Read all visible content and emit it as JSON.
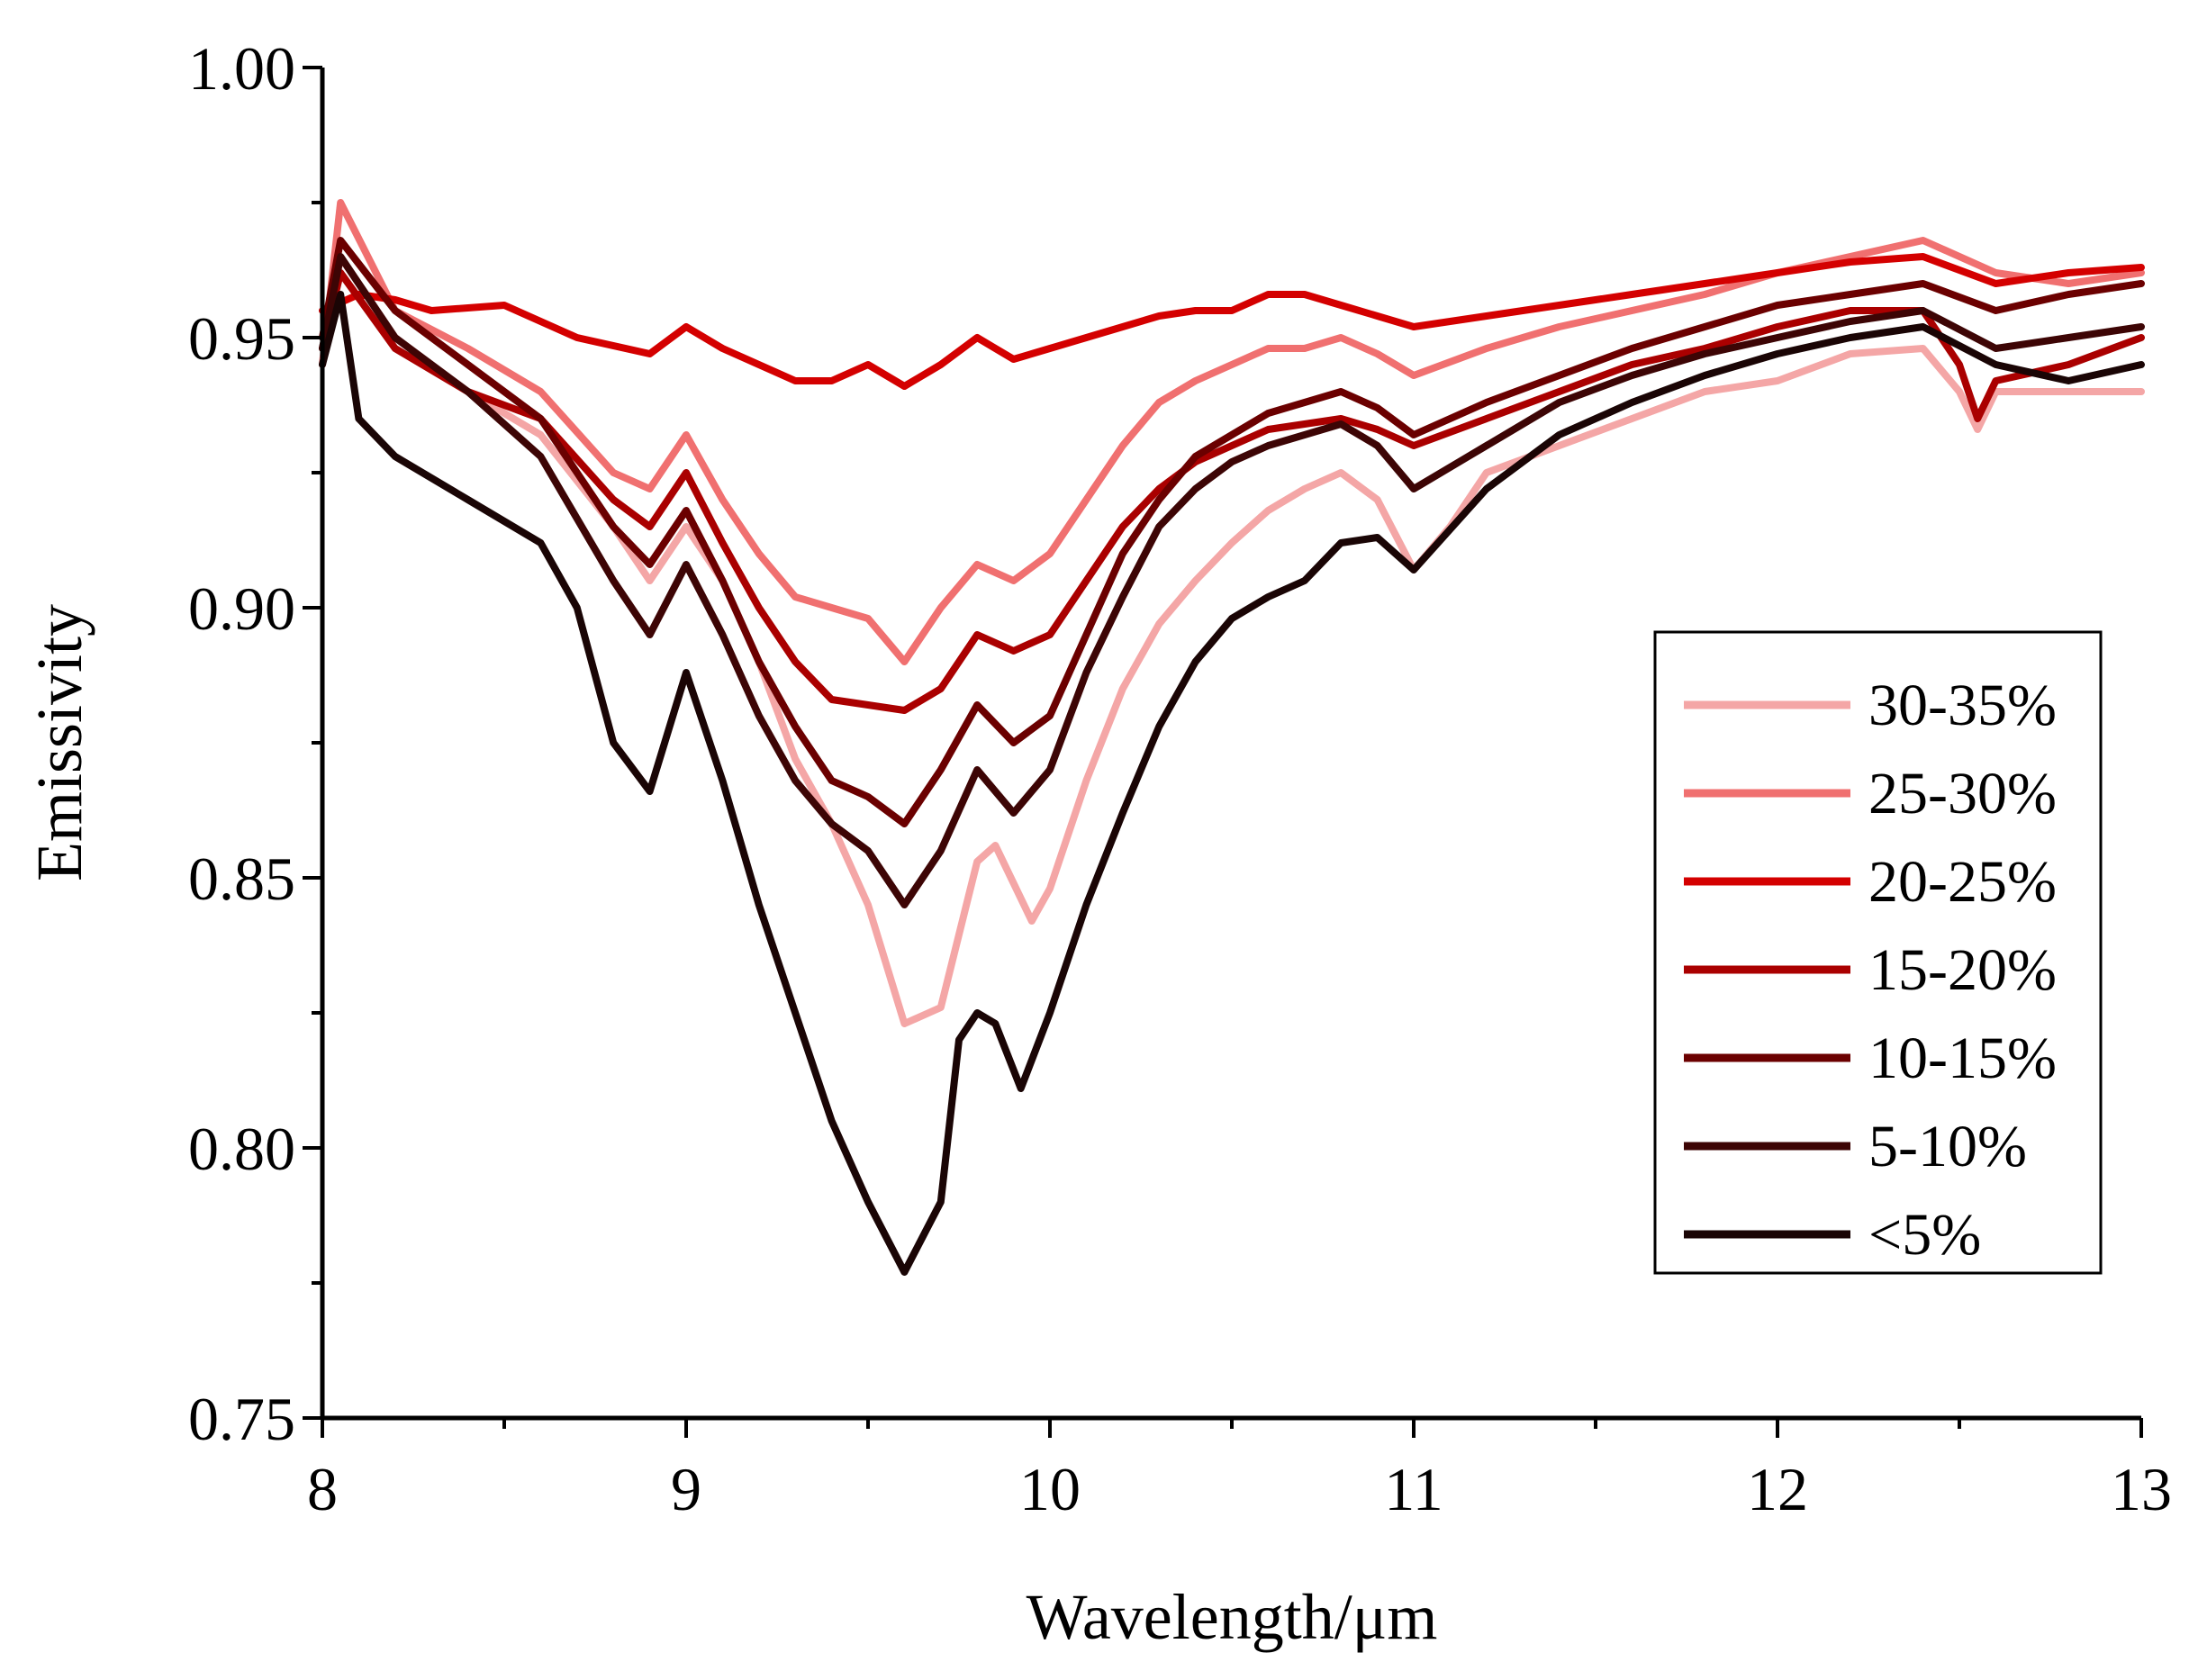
{
  "chart_data": {
    "type": "line",
    "title": "",
    "xlabel": "Wavelength/μm",
    "ylabel": "Emissivity",
    "xlim": [
      8,
      13
    ],
    "ylim": [
      0.75,
      1.0
    ],
    "xticks": [
      8,
      9,
      10,
      11,
      12,
      13
    ],
    "xtick_labels": [
      "8",
      "9",
      "10",
      "11",
      "12",
      "13"
    ],
    "yticks": [
      0.75,
      0.8,
      0.85,
      0.9,
      0.95,
      1.0
    ],
    "ytick_labels": [
      "0.75",
      "0.80",
      "0.85",
      "0.90",
      "0.95",
      "1.00"
    ],
    "grid": false,
    "legend_position": "right",
    "series": [
      {
        "name": "30-35%",
        "color": "#f4a6a6",
        "points": [
          [
            8,
            0.945
          ],
          [
            8.05,
            0.965
          ],
          [
            8.2,
            0.95
          ],
          [
            8.4,
            0.94
          ],
          [
            8.6,
            0.932
          ],
          [
            8.8,
            0.915
          ],
          [
            8.9,
            0.905
          ],
          [
            9.0,
            0.915
          ],
          [
            9.1,
            0.905
          ],
          [
            9.2,
            0.89
          ],
          [
            9.3,
            0.872
          ],
          [
            9.4,
            0.86
          ],
          [
            9.5,
            0.845
          ],
          [
            9.6,
            0.823
          ],
          [
            9.7,
            0.826
          ],
          [
            9.8,
            0.853
          ],
          [
            9.85,
            0.856
          ],
          [
            9.95,
            0.842
          ],
          [
            10.0,
            0.848
          ],
          [
            10.1,
            0.868
          ],
          [
            10.2,
            0.885
          ],
          [
            10.3,
            0.897
          ],
          [
            10.4,
            0.905
          ],
          [
            10.5,
            0.912
          ],
          [
            10.6,
            0.918
          ],
          [
            10.7,
            0.922
          ],
          [
            10.8,
            0.925
          ],
          [
            10.9,
            0.92
          ],
          [
            11.0,
            0.907
          ],
          [
            11.1,
            0.915
          ],
          [
            11.2,
            0.925
          ],
          [
            11.4,
            0.93
          ],
          [
            11.6,
            0.935
          ],
          [
            11.8,
            0.94
          ],
          [
            12.0,
            0.942
          ],
          [
            12.2,
            0.947
          ],
          [
            12.4,
            0.948
          ],
          [
            12.5,
            0.94
          ],
          [
            12.55,
            0.933
          ],
          [
            12.6,
            0.94
          ],
          [
            12.8,
            0.94
          ],
          [
            13.0,
            0.94
          ]
        ]
      },
      {
        "name": "25-30%",
        "color": "#f07070",
        "points": [
          [
            8,
            0.945
          ],
          [
            8.05,
            0.975
          ],
          [
            8.2,
            0.955
          ],
          [
            8.4,
            0.948
          ],
          [
            8.6,
            0.94
          ],
          [
            8.8,
            0.925
          ],
          [
            8.9,
            0.922
          ],
          [
            9.0,
            0.932
          ],
          [
            9.1,
            0.92
          ],
          [
            9.2,
            0.91
          ],
          [
            9.3,
            0.902
          ],
          [
            9.4,
            0.9
          ],
          [
            9.5,
            0.898
          ],
          [
            9.6,
            0.89
          ],
          [
            9.7,
            0.9
          ],
          [
            9.8,
            0.908
          ],
          [
            9.9,
            0.905
          ],
          [
            10.0,
            0.91
          ],
          [
            10.1,
            0.92
          ],
          [
            10.2,
            0.93
          ],
          [
            10.3,
            0.938
          ],
          [
            10.4,
            0.942
          ],
          [
            10.5,
            0.945
          ],
          [
            10.6,
            0.948
          ],
          [
            10.7,
            0.948
          ],
          [
            10.8,
            0.95
          ],
          [
            10.9,
            0.947
          ],
          [
            11.0,
            0.943
          ],
          [
            11.2,
            0.948
          ],
          [
            11.4,
            0.952
          ],
          [
            11.6,
            0.955
          ],
          [
            11.8,
            0.958
          ],
          [
            12.0,
            0.962
          ],
          [
            12.2,
            0.965
          ],
          [
            12.4,
            0.968
          ],
          [
            12.6,
            0.962
          ],
          [
            12.8,
            0.96
          ],
          [
            13.0,
            0.962
          ]
        ]
      },
      {
        "name": "20-25%",
        "color": "#d40000",
        "points": [
          [
            8,
            0.955
          ],
          [
            8.1,
            0.958
          ],
          [
            8.2,
            0.957
          ],
          [
            8.3,
            0.955
          ],
          [
            8.5,
            0.956
          ],
          [
            8.7,
            0.95
          ],
          [
            8.9,
            0.947
          ],
          [
            9.0,
            0.952
          ],
          [
            9.1,
            0.948
          ],
          [
            9.2,
            0.945
          ],
          [
            9.3,
            0.942
          ],
          [
            9.4,
            0.942
          ],
          [
            9.5,
            0.945
          ],
          [
            9.6,
            0.941
          ],
          [
            9.7,
            0.945
          ],
          [
            9.8,
            0.95
          ],
          [
            9.9,
            0.946
          ],
          [
            10.0,
            0.948
          ],
          [
            10.1,
            0.95
          ],
          [
            10.2,
            0.952
          ],
          [
            10.3,
            0.954
          ],
          [
            10.4,
            0.955
          ],
          [
            10.5,
            0.955
          ],
          [
            10.6,
            0.958
          ],
          [
            10.7,
            0.958
          ],
          [
            10.8,
            0.956
          ],
          [
            10.9,
            0.954
          ],
          [
            11.0,
            0.952
          ],
          [
            11.2,
            0.954
          ],
          [
            11.4,
            0.956
          ],
          [
            11.6,
            0.958
          ],
          [
            11.8,
            0.96
          ],
          [
            12.0,
            0.962
          ],
          [
            12.2,
            0.964
          ],
          [
            12.4,
            0.965
          ],
          [
            12.6,
            0.96
          ],
          [
            12.8,
            0.962
          ],
          [
            13.0,
            0.963
          ]
        ]
      },
      {
        "name": "15-20%",
        "color": "#aa0000",
        "points": [
          [
            8,
            0.948
          ],
          [
            8.05,
            0.962
          ],
          [
            8.2,
            0.948
          ],
          [
            8.4,
            0.94
          ],
          [
            8.6,
            0.935
          ],
          [
            8.8,
            0.92
          ],
          [
            8.9,
            0.915
          ],
          [
            9.0,
            0.925
          ],
          [
            9.1,
            0.912
          ],
          [
            9.2,
            0.9
          ],
          [
            9.3,
            0.89
          ],
          [
            9.4,
            0.883
          ],
          [
            9.5,
            0.882
          ],
          [
            9.6,
            0.881
          ],
          [
            9.7,
            0.885
          ],
          [
            9.8,
            0.895
          ],
          [
            9.9,
            0.892
          ],
          [
            10.0,
            0.895
          ],
          [
            10.1,
            0.905
          ],
          [
            10.2,
            0.915
          ],
          [
            10.3,
            0.922
          ],
          [
            10.4,
            0.927
          ],
          [
            10.5,
            0.93
          ],
          [
            10.6,
            0.933
          ],
          [
            10.7,
            0.934
          ],
          [
            10.8,
            0.935
          ],
          [
            10.9,
            0.933
          ],
          [
            11.0,
            0.93
          ],
          [
            11.2,
            0.935
          ],
          [
            11.4,
            0.94
          ],
          [
            11.6,
            0.945
          ],
          [
            11.8,
            0.948
          ],
          [
            12.0,
            0.952
          ],
          [
            12.2,
            0.955
          ],
          [
            12.4,
            0.955
          ],
          [
            12.5,
            0.945
          ],
          [
            12.55,
            0.935
          ],
          [
            12.6,
            0.942
          ],
          [
            12.8,
            0.945
          ],
          [
            13.0,
            0.95
          ]
        ]
      },
      {
        "name": "10-15%",
        "color": "#6b0000",
        "points": [
          [
            8,
            0.95
          ],
          [
            8.05,
            0.968
          ],
          [
            8.2,
            0.955
          ],
          [
            8.4,
            0.945
          ],
          [
            8.6,
            0.935
          ],
          [
            8.8,
            0.915
          ],
          [
            8.9,
            0.908
          ],
          [
            9.0,
            0.918
          ],
          [
            9.1,
            0.905
          ],
          [
            9.2,
            0.89
          ],
          [
            9.3,
            0.878
          ],
          [
            9.4,
            0.868
          ],
          [
            9.5,
            0.865
          ],
          [
            9.6,
            0.86
          ],
          [
            9.7,
            0.87
          ],
          [
            9.8,
            0.882
          ],
          [
            9.9,
            0.875
          ],
          [
            10.0,
            0.88
          ],
          [
            10.1,
            0.895
          ],
          [
            10.2,
            0.91
          ],
          [
            10.3,
            0.92
          ],
          [
            10.4,
            0.928
          ],
          [
            10.5,
            0.932
          ],
          [
            10.6,
            0.936
          ],
          [
            10.7,
            0.938
          ],
          [
            10.8,
            0.94
          ],
          [
            10.9,
            0.937
          ],
          [
            11.0,
            0.932
          ],
          [
            11.2,
            0.938
          ],
          [
            11.4,
            0.943
          ],
          [
            11.6,
            0.948
          ],
          [
            11.8,
            0.952
          ],
          [
            12.0,
            0.956
          ],
          [
            12.2,
            0.958
          ],
          [
            12.4,
            0.96
          ],
          [
            12.6,
            0.955
          ],
          [
            12.8,
            0.958
          ],
          [
            13.0,
            0.96
          ]
        ]
      },
      {
        "name": "5-10%",
        "color": "#3d0505",
        "points": [
          [
            8,
            0.948
          ],
          [
            8.05,
            0.965
          ],
          [
            8.2,
            0.95
          ],
          [
            8.4,
            0.94
          ],
          [
            8.6,
            0.928
          ],
          [
            8.8,
            0.905
          ],
          [
            8.9,
            0.895
          ],
          [
            9.0,
            0.908
          ],
          [
            9.1,
            0.895
          ],
          [
            9.2,
            0.88
          ],
          [
            9.3,
            0.868
          ],
          [
            9.4,
            0.86
          ],
          [
            9.5,
            0.855
          ],
          [
            9.6,
            0.845
          ],
          [
            9.7,
            0.855
          ],
          [
            9.8,
            0.87
          ],
          [
            9.9,
            0.862
          ],
          [
            10.0,
            0.87
          ],
          [
            10.1,
            0.888
          ],
          [
            10.2,
            0.902
          ],
          [
            10.3,
            0.915
          ],
          [
            10.4,
            0.922
          ],
          [
            10.5,
            0.927
          ],
          [
            10.6,
            0.93
          ],
          [
            10.7,
            0.932
          ],
          [
            10.8,
            0.934
          ],
          [
            10.9,
            0.93
          ],
          [
            11.0,
            0.922
          ],
          [
            11.2,
            0.93
          ],
          [
            11.4,
            0.938
          ],
          [
            11.6,
            0.943
          ],
          [
            11.8,
            0.947
          ],
          [
            12.0,
            0.95
          ],
          [
            12.2,
            0.953
          ],
          [
            12.4,
            0.955
          ],
          [
            12.6,
            0.948
          ],
          [
            12.8,
            0.95
          ],
          [
            13.0,
            0.952
          ]
        ]
      },
      {
        "name": "<5%",
        "color": "#1a0505",
        "points": [
          [
            8,
            0.945
          ],
          [
            8.05,
            0.958
          ],
          [
            8.1,
            0.935
          ],
          [
            8.2,
            0.928
          ],
          [
            8.4,
            0.92
          ],
          [
            8.6,
            0.912
          ],
          [
            8.7,
            0.9
          ],
          [
            8.8,
            0.875
          ],
          [
            8.9,
            0.866
          ],
          [
            9.0,
            0.888
          ],
          [
            9.1,
            0.868
          ],
          [
            9.2,
            0.845
          ],
          [
            9.3,
            0.825
          ],
          [
            9.4,
            0.805
          ],
          [
            9.5,
            0.79
          ],
          [
            9.6,
            0.777
          ],
          [
            9.7,
            0.79
          ],
          [
            9.75,
            0.82
          ],
          [
            9.8,
            0.825
          ],
          [
            9.85,
            0.823
          ],
          [
            9.92,
            0.811
          ],
          [
            10.0,
            0.825
          ],
          [
            10.1,
            0.845
          ],
          [
            10.2,
            0.862
          ],
          [
            10.3,
            0.878
          ],
          [
            10.4,
            0.89
          ],
          [
            10.5,
            0.898
          ],
          [
            10.6,
            0.902
          ],
          [
            10.7,
            0.905
          ],
          [
            10.8,
            0.912
          ],
          [
            10.9,
            0.913
          ],
          [
            11.0,
            0.907
          ],
          [
            11.2,
            0.922
          ],
          [
            11.4,
            0.932
          ],
          [
            11.6,
            0.938
          ],
          [
            11.8,
            0.943
          ],
          [
            12.0,
            0.947
          ],
          [
            12.2,
            0.95
          ],
          [
            12.4,
            0.952
          ],
          [
            12.6,
            0.945
          ],
          [
            12.8,
            0.942
          ],
          [
            13.0,
            0.945
          ]
        ]
      }
    ]
  }
}
